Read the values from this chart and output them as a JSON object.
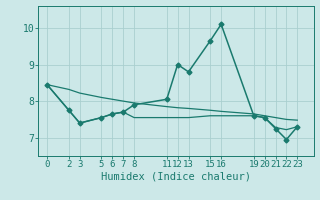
{
  "background_color": "#cce8e8",
  "grid_color": "#aacfcf",
  "line_color": "#1a7a6e",
  "x_ticks": [
    0,
    2,
    3,
    5,
    6,
    7,
    8,
    11,
    12,
    13,
    15,
    16,
    19,
    20,
    21,
    22,
    23
  ],
  "y_ticks": [
    7,
    8,
    9,
    10
  ],
  "ylim": [
    6.5,
    10.6
  ],
  "xlim": [
    -0.8,
    24.5
  ],
  "xlabel": "Humidex (Indice chaleur)",
  "line_main": {
    "x": [
      0,
      2,
      3,
      5,
      6,
      7,
      8,
      11,
      12,
      13,
      15,
      16,
      19,
      20,
      21,
      22,
      23
    ],
    "y": [
      8.45,
      7.75,
      7.4,
      7.55,
      7.65,
      7.7,
      7.9,
      8.05,
      9.0,
      8.8,
      9.65,
      10.1,
      7.6,
      7.55,
      7.25,
      6.95,
      7.3
    ],
    "marker": "D",
    "markersize": 2.5,
    "linewidth": 1.1
  },
  "line_mid": {
    "x": [
      0,
      2,
      3,
      5,
      6,
      7,
      8,
      11,
      12,
      13,
      15,
      16,
      19,
      20,
      21,
      22,
      23
    ],
    "y": [
      8.45,
      7.75,
      7.4,
      7.55,
      7.65,
      7.7,
      7.55,
      7.55,
      7.55,
      7.55,
      7.6,
      7.6,
      7.6,
      7.55,
      7.28,
      7.22,
      7.3
    ],
    "linewidth": 0.9
  },
  "line_top": {
    "x": [
      0,
      2,
      3,
      5,
      6,
      7,
      8,
      11,
      12,
      13,
      15,
      16,
      19,
      20,
      21,
      22,
      23
    ],
    "y": [
      8.45,
      8.32,
      8.22,
      8.1,
      8.05,
      8.0,
      7.95,
      7.85,
      7.82,
      7.8,
      7.75,
      7.72,
      7.65,
      7.6,
      7.55,
      7.5,
      7.48
    ],
    "linewidth": 0.9
  },
  "tick_fontsize": 6.5,
  "xlabel_fontsize": 7.5
}
